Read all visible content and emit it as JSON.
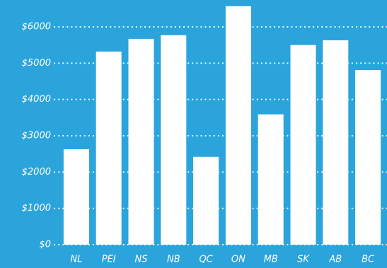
{
  "chart_data": {
    "type": "bar",
    "categories": [
      "NL",
      "PEI",
      "NS",
      "NB",
      "QC",
      "ON",
      "MB",
      "SK",
      "AB",
      "BC"
    ],
    "values": [
      2630,
      5320,
      5670,
      5770,
      2420,
      6570,
      3590,
      5500,
      5630,
      4810
    ],
    "color": "#ffffff",
    "background": "#2ba4dc",
    "ylim": [
      0,
      6740
    ],
    "yticks": [
      {
        "value": 0,
        "label": "$0"
      },
      {
        "value": 1000,
        "label": "$1000"
      },
      {
        "value": 2000,
        "label": "$2000"
      },
      {
        "value": 3000,
        "label": "$3000"
      },
      {
        "value": 4000,
        "label": "$4000"
      },
      {
        "value": 5000,
        "label": "$5000"
      },
      {
        "value": 6000,
        "label": "$6000"
      }
    ],
    "grid": true
  }
}
